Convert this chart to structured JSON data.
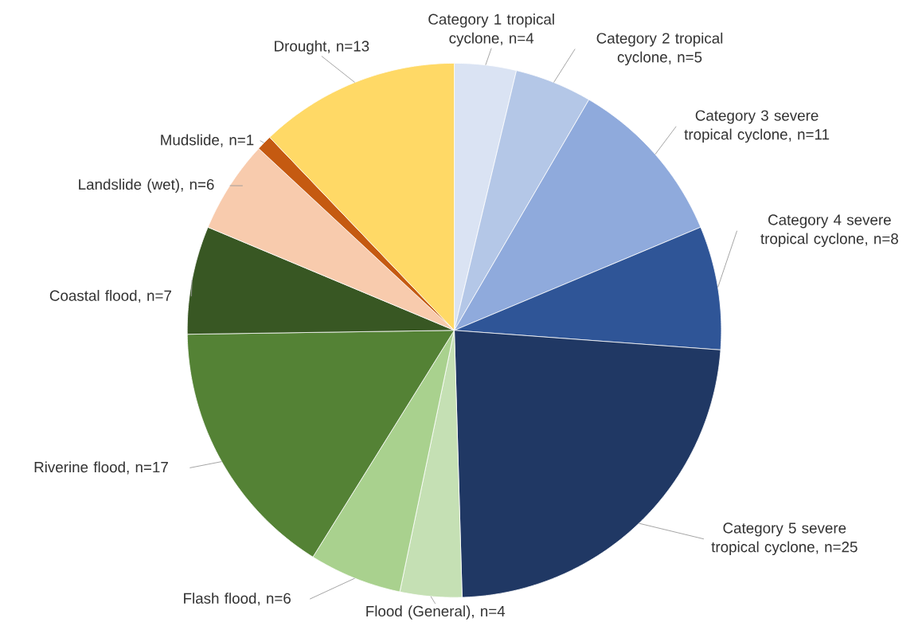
{
  "chart_data": {
    "type": "pie",
    "categories": [
      "Category 1 tropical cyclone, n=4",
      "Category 2 tropical cyclone, n=5",
      "Category 3 severe tropical cyclone, n=11",
      "Category 4 severe tropical cyclone, n=8",
      "Category 5 severe tropical cyclone, n=25",
      "Flood (General), n=4",
      "Flash flood, n=6",
      "Riverine flood, n=17",
      "Coastal flood, n=7",
      "Landslide (wet), n=6",
      "Mudslide, n=1",
      "Drought, n=13"
    ],
    "values": [
      4,
      5,
      11,
      8,
      25,
      4,
      6,
      17,
      7,
      6,
      1,
      13
    ],
    "colors": [
      "#dae3f3",
      "#b4c7e7",
      "#8faadc",
      "#2f5597",
      "#203864",
      "#c5e0b4",
      "#a9d18e",
      "#548235",
      "#385723",
      "#f8cbad",
      "#c55a11",
      "#ffd966"
    ]
  }
}
